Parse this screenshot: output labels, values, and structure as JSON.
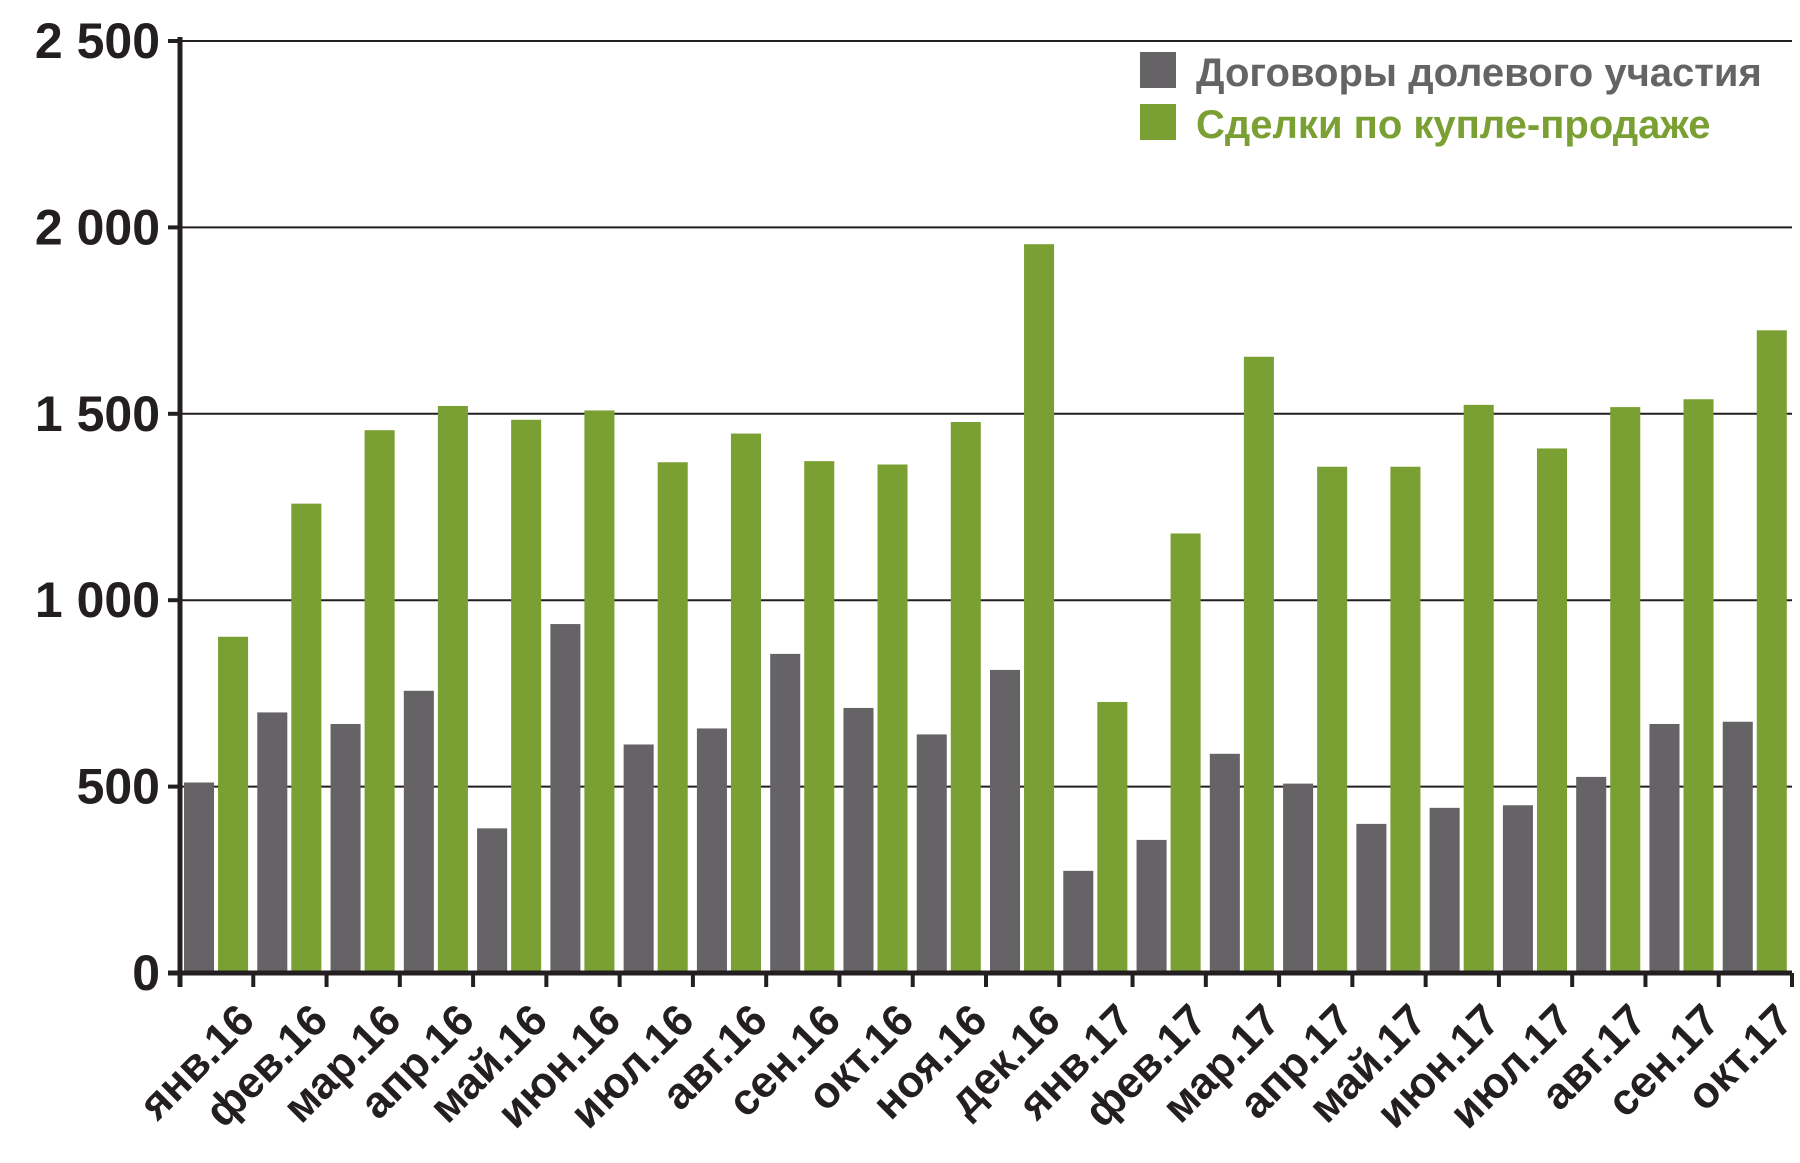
{
  "chart_data": {
    "type": "bar",
    "title": "",
    "xlabel": "",
    "ylabel": "",
    "ylim": [
      0,
      2500
    ],
    "yticks": [
      0,
      500,
      1000,
      1500,
      2000,
      2500
    ],
    "ytick_labels": [
      "0",
      "500",
      "1 000",
      "1 500",
      "2 000",
      "2 500"
    ],
    "grid": true,
    "legend_position": "top-right",
    "categories": [
      "янв.16",
      "фев.16",
      "мар.16",
      "апр.16",
      "май.16",
      "июн.16",
      "июл.16",
      "авг.16",
      "сен.16",
      "окт.16",
      "ноя.16",
      "дек.16",
      "янв.17",
      "фев.17",
      "мар.17",
      "апр.17",
      "май.17",
      "июн.17",
      "июл.17",
      "авг.17",
      "сен.17",
      "окт.17"
    ],
    "series": [
      {
        "name": "Договоры долевого участия",
        "color": "#656366",
        "values": [
          511,
          699,
          668,
          757,
          388,
          936,
          613,
          656,
          856,
          711,
          640,
          813,
          274,
          357,
          588,
          508,
          400,
          443,
          450,
          526,
          668,
          674
        ]
      },
      {
        "name": "Сделки по купле-продаже",
        "color": "#7a9f32",
        "values": [
          902,
          1259,
          1456,
          1521,
          1484,
          1509,
          1370,
          1447,
          1373,
          1364,
          1478,
          1955,
          727,
          1179,
          1653,
          1358,
          1358,
          1524,
          1407,
          1518,
          1539,
          1724
        ]
      }
    ]
  }
}
